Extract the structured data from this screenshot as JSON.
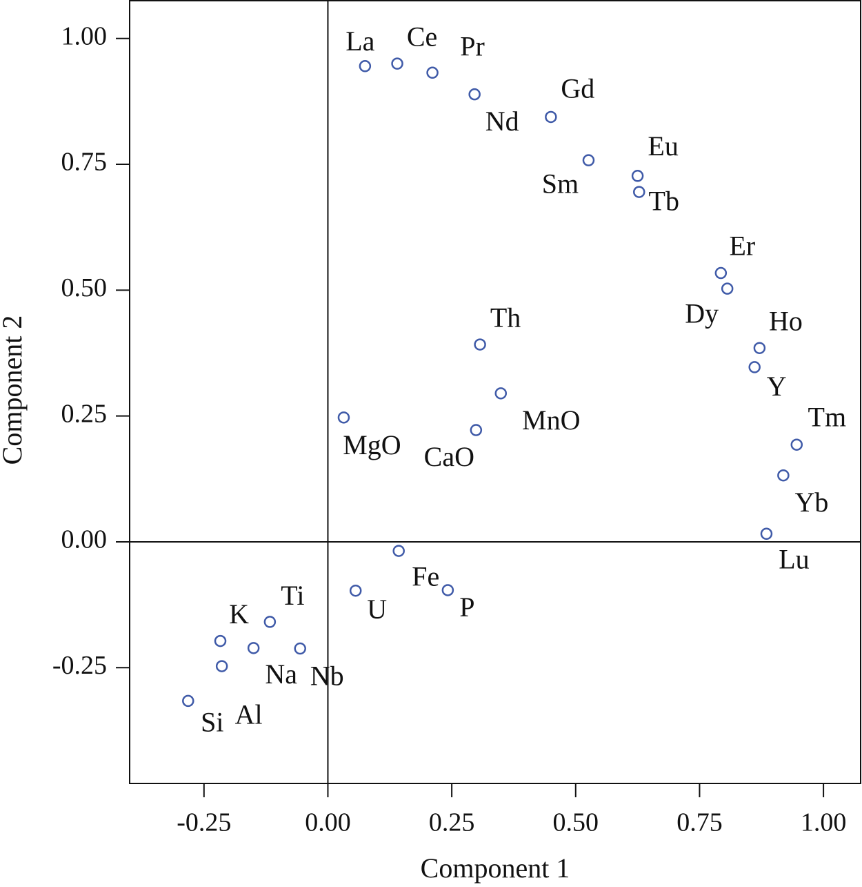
{
  "chart_data": {
    "type": "scatter",
    "x_label": "Component 1",
    "y_label": "Component 2",
    "point_labels": [
      "La",
      "Ce",
      "Pr",
      "Nd",
      "Gd",
      "Sm",
      "Eu",
      "Tb",
      "Er",
      "Dy",
      "Ho",
      "Y",
      "Tm",
      "Yb",
      "Lu",
      "Th",
      "MnO",
      "MgO",
      "CaO",
      "Fe",
      "U",
      "P",
      "Ti",
      "K",
      "Na",
      "Nb",
      "Al",
      "Si"
    ],
    "x": [
      0.075,
      0.14,
      0.211,
      0.296,
      0.45,
      0.526,
      0.625,
      0.628,
      0.793,
      0.806,
      0.871,
      0.861,
      0.946,
      0.919,
      0.885,
      0.307,
      0.349,
      0.032,
      0.299,
      0.143,
      0.056,
      0.242,
      -0.117,
      -0.217,
      -0.15,
      -0.056,
      -0.214,
      -0.282
    ],
    "values": [
      0.945,
      0.95,
      0.932,
      0.889,
      0.844,
      0.758,
      0.727,
      0.695,
      0.534,
      0.503,
      0.385,
      0.347,
      0.193,
      0.132,
      0.016,
      0.392,
      0.295,
      0.247,
      0.222,
      -0.018,
      -0.097,
      -0.096,
      -0.159,
      -0.197,
      -0.211,
      -0.212,
      -0.247,
      -0.316
    ],
    "color": "#3f5aa8",
    "xlim": [
      -0.4,
      1.075
    ],
    "ylim": [
      -0.48,
      1.075
    ],
    "xticks": [
      {
        "value": -0.25,
        "label": "-0.25"
      },
      {
        "value": 0,
        "label": "0.00"
      },
      {
        "value": 0.25,
        "label": "0.25"
      },
      {
        "value": 0.5,
        "label": "0.50"
      },
      {
        "value": 0.75,
        "label": "0.75"
      },
      {
        "value": 1,
        "label": "1.00"
      }
    ],
    "yticks": [
      {
        "value": -0.25,
        "label": "-0.25"
      },
      {
        "value": 0,
        "label": "0.00"
      },
      {
        "value": 0.25,
        "label": "0.25"
      },
      {
        "value": 0.5,
        "label": "0.50"
      },
      {
        "value": 0.75,
        "label": "0.75"
      },
      {
        "value": 1,
        "label": "1.00"
      }
    ]
  }
}
